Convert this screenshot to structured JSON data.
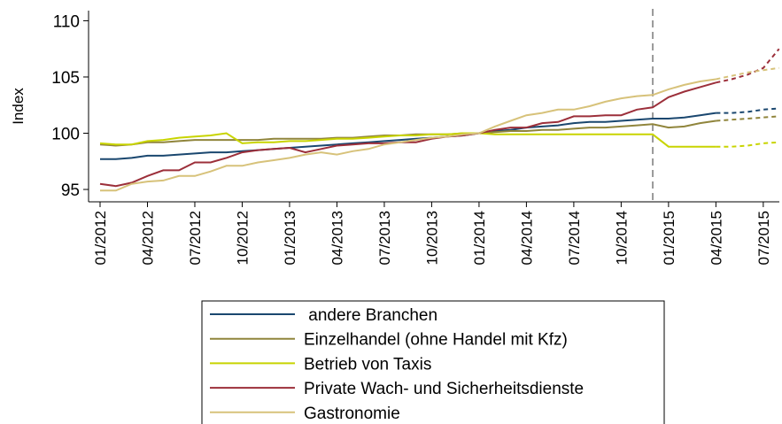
{
  "chart_data": {
    "type": "line",
    "y_label": "Index",
    "categories": [
      "01/2012",
      null,
      null,
      "04/2012",
      null,
      null,
      "07/2012",
      null,
      null,
      "10/2012",
      null,
      null,
      "01/2013",
      null,
      null,
      "04/2013",
      null,
      null,
      "07/2013",
      null,
      null,
      "10/2013",
      null,
      null,
      "01/2014",
      null,
      null,
      "04/2014",
      null,
      null,
      "07/2014",
      null,
      null,
      "10/2014",
      null,
      null,
      "01/2015",
      null,
      null,
      "04/2015",
      null,
      null,
      "07/2015",
      null
    ],
    "ylim": [
      93.9,
      110.9
    ],
    "yticks": [
      95,
      100,
      105,
      110
    ],
    "forecast_from": 39,
    "reference_line": {
      "x": 35,
      "color": "#999999"
    },
    "series": [
      {
        "name": " andere Branchen",
        "color": "#1a476f",
        "values": [
          97.7,
          97.7,
          97.8,
          98.0,
          98.0,
          98.1,
          98.2,
          98.3,
          98.3,
          98.4,
          98.5,
          98.6,
          98.7,
          98.8,
          98.9,
          99.0,
          99.1,
          99.2,
          99.3,
          99.4,
          99.5,
          99.6,
          99.7,
          99.8,
          100.0,
          100.2,
          100.3,
          100.5,
          100.6,
          100.7,
          100.9,
          101.0,
          101.0,
          101.1,
          101.2,
          101.3,
          101.3,
          101.4,
          101.6,
          101.8,
          101.8,
          101.9,
          102.1,
          102.2
        ]
      },
      {
        "name": "Einzelhandel (ohne Handel mit Kfz)",
        "color": "#90853c",
        "values": [
          99.0,
          98.9,
          99.0,
          99.2,
          99.2,
          99.3,
          99.4,
          99.4,
          99.4,
          99.4,
          99.4,
          99.5,
          99.5,
          99.5,
          99.5,
          99.6,
          99.6,
          99.7,
          99.8,
          99.8,
          99.9,
          99.9,
          99.9,
          100.0,
          100.0,
          100.1,
          100.2,
          100.2,
          100.3,
          100.3,
          100.4,
          100.5,
          100.5,
          100.6,
          100.7,
          100.8,
          100.5,
          100.6,
          100.9,
          101.1,
          101.2,
          101.3,
          101.4,
          101.5
        ]
      },
      {
        "name": "Betrieb von Taxis",
        "color": "#c8d400",
        "values": [
          99.1,
          99.0,
          99.0,
          99.3,
          99.4,
          99.6,
          99.7,
          99.8,
          100.0,
          99.1,
          99.2,
          99.2,
          99.3,
          99.3,
          99.4,
          99.5,
          99.5,
          99.6,
          99.7,
          99.8,
          99.8,
          99.9,
          99.9,
          100.0,
          100.0,
          99.9,
          99.9,
          99.9,
          99.9,
          99.9,
          99.9,
          99.9,
          99.9,
          99.9,
          99.9,
          99.9,
          98.8,
          98.8,
          98.8,
          98.8,
          98.8,
          98.9,
          99.1,
          99.2
        ]
      },
      {
        "name": "Private Wach- und Sicherheitsdienste",
        "color": "#9c2f3a",
        "values": [
          95.5,
          95.3,
          95.6,
          96.2,
          96.7,
          96.7,
          97.4,
          97.4,
          97.8,
          98.3,
          98.5,
          98.6,
          98.7,
          98.3,
          98.6,
          98.9,
          99.0,
          99.1,
          99.1,
          99.2,
          99.2,
          99.5,
          99.7,
          99.8,
          100.0,
          100.3,
          100.5,
          100.5,
          100.9,
          101.0,
          101.5,
          101.5,
          101.6,
          101.6,
          102.1,
          102.3,
          103.2,
          103.7,
          104.1,
          104.5,
          104.8,
          105.2,
          105.8,
          107.5
        ]
      },
      {
        "name": "Gastronomie",
        "color": "#d7c27a",
        "values": [
          94.9,
          94.9,
          95.5,
          95.7,
          95.8,
          96.2,
          96.2,
          96.6,
          97.1,
          97.1,
          97.4,
          97.6,
          97.8,
          98.1,
          98.3,
          98.1,
          98.4,
          98.6,
          99.0,
          99.2,
          99.4,
          99.6,
          99.7,
          99.9,
          100.0,
          100.6,
          101.1,
          101.6,
          101.8,
          102.1,
          102.1,
          102.4,
          102.8,
          103.1,
          103.3,
          103.4,
          103.9,
          104.3,
          104.6,
          104.8,
          105.1,
          105.4,
          105.6,
          105.8
        ]
      }
    ]
  }
}
